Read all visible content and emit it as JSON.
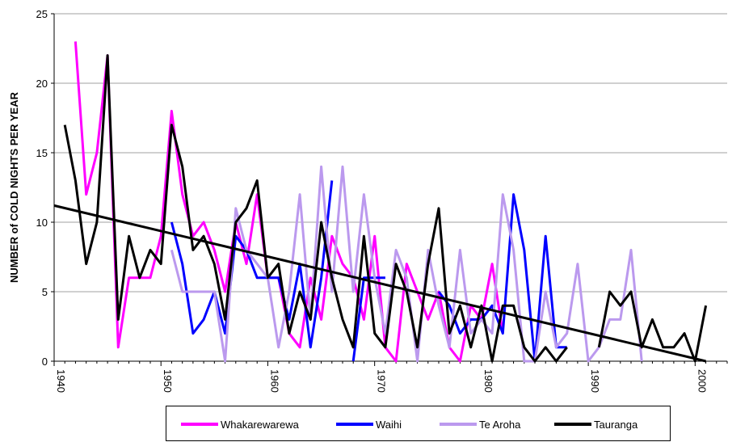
{
  "chart_data": {
    "type": "line",
    "ylabel": "NUMBER of COLD NIGHTS PER YEAR",
    "xlabel": "",
    "ylim": [
      0,
      25
    ],
    "xlim": [
      1940,
      2003
    ],
    "yticks": [
      "0",
      "5",
      "10",
      "15",
      "20",
      "25"
    ],
    "xticks": [
      "1940",
      "1950",
      "1960",
      "1970",
      "1980",
      "1990",
      "2000"
    ],
    "grid": "horizontal",
    "legend_position": "bottom",
    "series": [
      {
        "name": "Whakarewarewa",
        "color": "#ff00ff",
        "points": [
          [
            1942,
            23
          ],
          [
            1943,
            12
          ],
          [
            1944,
            15
          ],
          [
            1945,
            22
          ],
          [
            1946,
            1
          ],
          [
            1947,
            6
          ],
          [
            1948,
            6
          ],
          [
            1949,
            6
          ],
          [
            1950,
            9
          ],
          [
            1951,
            18
          ],
          [
            1952,
            12
          ],
          [
            1953,
            9
          ],
          [
            1954,
            10
          ],
          [
            1955,
            8
          ],
          [
            1956,
            5
          ],
          [
            1957,
            10
          ],
          [
            1958,
            7
          ],
          [
            1959,
            12
          ],
          [
            1960,
            6
          ],
          [
            1961,
            6
          ],
          [
            1962,
            2
          ],
          [
            1963,
            1
          ],
          [
            1964,
            6
          ],
          [
            1965,
            3
          ],
          [
            1966,
            9
          ],
          [
            1967,
            7
          ],
          [
            1968,
            6
          ],
          [
            1969,
            3
          ],
          [
            1970,
            9
          ],
          [
            1971,
            1
          ],
          [
            1972,
            0
          ],
          [
            1973,
            7
          ],
          [
            1974,
            5
          ],
          [
            1975,
            3
          ],
          [
            1976,
            5
          ],
          [
            1977,
            1
          ],
          [
            1978,
            0
          ],
          [
            1979,
            4
          ],
          [
            1980,
            3
          ],
          [
            1981,
            7
          ],
          [
            1982,
            2
          ]
        ]
      },
      {
        "name": "Waihi",
        "color": "#0000ff",
        "points": [
          [
            1951,
            10
          ],
          [
            1952,
            7
          ],
          [
            1953,
            2
          ],
          [
            1954,
            3
          ],
          [
            1955,
            5
          ],
          [
            1956,
            2
          ],
          [
            1957,
            9
          ],
          [
            1958,
            8
          ],
          [
            1959,
            6
          ],
          [
            1960,
            6
          ],
          [
            1961,
            6
          ],
          [
            1962,
            3
          ],
          [
            1963,
            7
          ],
          [
            1964,
            1
          ],
          [
            1965,
            6
          ],
          [
            1966,
            13
          ],
          null,
          [
            1968,
            0
          ],
          [
            1969,
            6
          ],
          [
            1970,
            6
          ],
          [
            1971,
            6
          ],
          null,
          [
            1976,
            5
          ],
          [
            1977,
            4
          ],
          [
            1978,
            2
          ],
          [
            1979,
            3
          ],
          [
            1980,
            3
          ],
          [
            1981,
            4
          ],
          [
            1982,
            2
          ],
          [
            1983,
            12
          ],
          [
            1984,
            8
          ],
          [
            1985,
            0
          ],
          [
            1986,
            9
          ],
          [
            1987,
            1
          ],
          [
            1988,
            1
          ]
        ]
      },
      {
        "name": "Te Aroha",
        "color": "#bb99ee",
        "points": [
          [
            1951,
            8
          ],
          [
            1952,
            5
          ],
          [
            1953,
            5
          ],
          [
            1954,
            5
          ],
          [
            1955,
            5
          ],
          [
            1956,
            0
          ],
          [
            1957,
            11
          ],
          [
            1958,
            8
          ],
          [
            1959,
            7
          ],
          [
            1960,
            6
          ],
          [
            1961,
            1
          ],
          [
            1962,
            5
          ],
          [
            1963,
            12
          ],
          [
            1964,
            3
          ],
          [
            1965,
            14
          ],
          [
            1966,
            5
          ],
          [
            1967,
            14
          ],
          [
            1968,
            5
          ],
          [
            1969,
            12
          ],
          [
            1970,
            6
          ],
          [
            1971,
            2
          ],
          [
            1972,
            8
          ],
          [
            1973,
            6
          ],
          [
            1974,
            0
          ],
          [
            1975,
            8
          ],
          [
            1976,
            4
          ],
          [
            1977,
            1
          ],
          [
            1978,
            8
          ],
          [
            1979,
            2
          ],
          [
            1980,
            3
          ],
          [
            1981,
            2
          ],
          [
            1982,
            12
          ],
          [
            1983,
            8
          ],
          [
            1984,
            0
          ],
          [
            1985,
            0
          ],
          [
            1986,
            5
          ],
          [
            1987,
            1
          ],
          [
            1988,
            2
          ],
          [
            1989,
            7
          ],
          [
            1990,
            0
          ],
          [
            1991,
            1
          ],
          [
            1992,
            3
          ],
          [
            1993,
            3
          ],
          [
            1994,
            8
          ],
          [
            1995,
            0
          ]
        ]
      },
      {
        "name": "Tauranga",
        "color": "#000000",
        "points": [
          [
            1941,
            17
          ],
          [
            1942,
            13
          ],
          [
            1943,
            7
          ],
          [
            1944,
            10
          ],
          [
            1945,
            22
          ],
          [
            1946,
            3
          ],
          [
            1947,
            9
          ],
          [
            1948,
            6
          ],
          [
            1949,
            8
          ],
          [
            1950,
            7
          ],
          [
            1951,
            17
          ],
          [
            1952,
            14
          ],
          [
            1953,
            8
          ],
          [
            1954,
            9
          ],
          [
            1955,
            7
          ],
          [
            1956,
            3
          ],
          [
            1957,
            10
          ],
          [
            1958,
            11
          ],
          [
            1959,
            13
          ],
          [
            1960,
            6
          ],
          [
            1961,
            7
          ],
          [
            1962,
            2
          ],
          [
            1963,
            5
          ],
          [
            1964,
            3
          ],
          [
            1965,
            10
          ],
          [
            1966,
            6
          ],
          [
            1967,
            3
          ],
          [
            1968,
            1
          ],
          [
            1969,
            9
          ],
          [
            1970,
            2
          ],
          [
            1971,
            1
          ],
          [
            1972,
            7
          ],
          [
            1973,
            5
          ],
          [
            1974,
            1
          ],
          [
            1975,
            7
          ],
          [
            1976,
            11
          ],
          [
            1977,
            2
          ],
          [
            1978,
            4
          ],
          [
            1979,
            1
          ],
          [
            1980,
            4
          ],
          [
            1981,
            0
          ],
          [
            1982,
            4
          ],
          [
            1983,
            4
          ],
          [
            1984,
            1
          ],
          [
            1985,
            0
          ],
          [
            1986,
            1
          ],
          [
            1987,
            0
          ],
          [
            1988,
            1
          ],
          null,
          [
            1991,
            1
          ],
          [
            1992,
            5
          ],
          [
            1993,
            4
          ],
          [
            1994,
            5
          ],
          [
            1995,
            1
          ],
          [
            1996,
            3
          ],
          [
            1997,
            1
          ],
          [
            1998,
            1
          ],
          [
            1999,
            2
          ],
          [
            2000,
            0
          ],
          [
            2001,
            4
          ]
        ]
      }
    ],
    "trendline": {
      "color": "#000000",
      "points": [
        [
          1940,
          11.2
        ],
        [
          2001,
          0
        ]
      ]
    }
  }
}
